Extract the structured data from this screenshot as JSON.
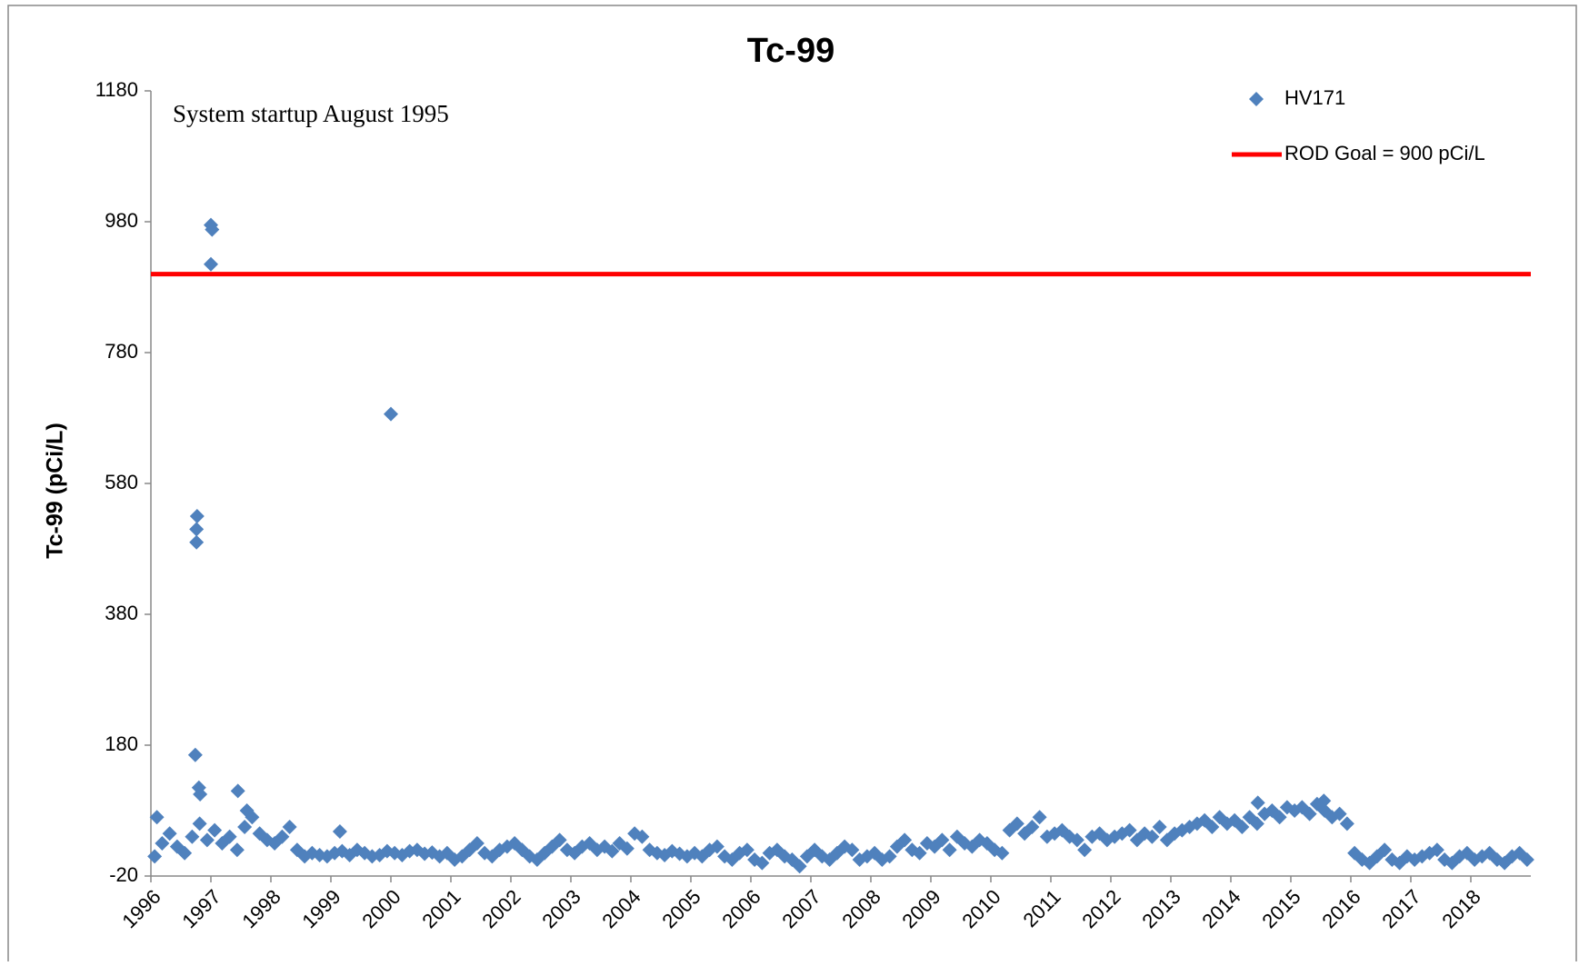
{
  "chart_data": {
    "type": "scatter",
    "title": "Tc-99",
    "ylabel": "Tc-99 (pCi/L)",
    "annotation": "System startup August 1995",
    "xlim": [
      1996,
      2019
    ],
    "xticks": [
      1996,
      1997,
      1998,
      1999,
      2000,
      2001,
      2002,
      2003,
      2004,
      2005,
      2006,
      2007,
      2008,
      2009,
      2010,
      2011,
      2012,
      2013,
      2014,
      2015,
      2016,
      2017,
      2018
    ],
    "ylim": [
      -20,
      1180
    ],
    "yticks": [
      -20,
      180,
      380,
      580,
      780,
      980,
      1180
    ],
    "reference_line": {
      "name": "ROD Goal = 900 pCi/L",
      "value": 900,
      "color": "#ff0000"
    },
    "series": [
      {
        "name": "HV171",
        "color": "#4f81bd",
        "x": [
          1996.0625,
          1996.1875,
          1996.3125,
          1996.4375,
          1996.5625,
          1996.6875,
          1996.8125,
          1996.9375,
          1997.0625,
          1997.1875,
          1997.3125,
          1997.4375,
          1997.5625,
          1997.6875,
          1997.8125,
          1997.9375,
          1998.0625,
          1998.1875,
          1998.3125,
          1998.4375,
          1998.5625,
          1998.6875,
          1998.8125,
          1998.9375,
          1999.0625,
          1999.1875,
          1999.3125,
          1999.4375,
          1999.5625,
          1999.6875,
          1999.8125,
          1999.9375,
          2000.0625,
          2000.1875,
          2000.3125,
          2000.4375,
          2000.5625,
          2000.6875,
          2000.8125,
          2000.9375,
          2001.0625,
          2001.1875,
          2001.3125,
          2001.4375,
          2001.5625,
          2001.6875,
          2001.8125,
          2001.9375,
          2002.0625,
          2002.1875,
          2002.3125,
          2002.4375,
          2002.5625,
          2002.6875,
          2002.8125,
          2002.9375,
          2003.0625,
          2003.1875,
          2003.3125,
          2003.4375,
          2003.5625,
          2003.6875,
          2003.8125,
          2003.9375,
          2004.0625,
          2004.1875,
          2004.3125,
          2004.4375,
          2004.5625,
          2004.6875,
          2004.8125,
          2004.9375,
          2005.0625,
          2005.1875,
          2005.3125,
          2005.4375,
          2005.5625,
          2005.6875,
          2005.8125,
          2005.9375,
          2006.0625,
          2006.1875,
          2006.3125,
          2006.4375,
          2006.5625,
          2006.6875,
          2006.8125,
          2006.9375,
          2007.0625,
          2007.1875,
          2007.3125,
          2007.4375,
          2007.5625,
          2007.6875,
          2007.8125,
          2007.9375,
          2008.0625,
          2008.1875,
          2008.3125,
          2008.4375,
          2008.5625,
          2008.6875,
          2008.8125,
          2008.9375,
          2009.0625,
          2009.1875,
          2009.3125,
          2009.4375,
          2009.5625,
          2009.6875,
          2009.8125,
          2009.9375,
          2010.0625,
          2010.1875,
          2010.3125,
          2010.4375,
          2010.5625,
          2010.6875,
          2010.8125,
          2010.9375,
          2011.0625,
          2011.1875,
          2011.3125,
          2011.4375,
          2011.5625,
          2011.6875,
          2011.8125,
          2011.9375,
          2012.0625,
          2012.1875,
          2012.3125,
          2012.4375,
          2012.5625,
          2012.6875,
          2012.8125,
          2012.9375,
          2013.0625,
          2013.1875,
          2013.3125,
          2013.4375,
          2013.5625,
          2013.6875,
          2013.8125,
          2013.9375,
          2014.0625,
          2014.1875,
          2014.3125,
          2014.4375,
          2014.5625,
          2014.6875,
          2014.8125,
          2014.9375,
          2015.0625,
          2015.1875,
          2015.3125,
          2015.4375,
          2015.5625,
          2015.6875,
          2015.8125,
          2015.9375,
          2016.0625,
          2016.1875,
          2016.3125,
          2016.4375,
          2016.5625,
          2016.6875,
          2016.8125,
          2016.9375,
          2017.0625,
          2017.1875,
          2017.3125,
          2017.4375,
          2017.5625,
          2017.6875,
          2017.8125,
          2017.9375,
          2018.0625,
          2018.1875,
          2018.3125,
          2018.4375,
          2018.5625,
          2018.6875,
          2018.8125,
          2018.9375,
          1996.74,
          1996.76,
          1996.76,
          1996.77,
          1996.8,
          1996.82,
          1997.0,
          1997.02,
          1997.0,
          1997.45,
          1999.15,
          2000.0,
          2014.45,
          2015.55,
          1996.1,
          1997.6
        ],
        "values": [
          10,
          30,
          45,
          25,
          15,
          40,
          60,
          35,
          50,
          30,
          40,
          20,
          55,
          70,
          45,
          35,
          30,
          40,
          55,
          20,
          10,
          15,
          12,
          10,
          15,
          18,
          12,
          20,
          15,
          10,
          12,
          18,
          15,
          12,
          18,
          20,
          14,
          16,
          10,
          15,
          5,
          10,
          20,
          30,
          15,
          10,
          20,
          25,
          30,
          20,
          10,
          5,
          15,
          25,
          35,
          20,
          15,
          25,
          30,
          20,
          25,
          18,
          30,
          22,
          45,
          40,
          20,
          15,
          12,
          18,
          14,
          10,
          15,
          10,
          20,
          25,
          10,
          5,
          15,
          20,
          5,
          0,
          15,
          20,
          10,
          5,
          -5,
          10,
          20,
          10,
          5,
          15,
          25,
          20,
          5,
          10,
          15,
          5,
          10,
          25,
          35,
          20,
          15,
          30,
          25,
          35,
          20,
          40,
          30,
          25,
          35,
          30,
          20,
          15,
          50,
          60,
          45,
          55,
          70,
          40,
          45,
          50,
          40,
          35,
          20,
          40,
          45,
          35,
          40,
          45,
          50,
          35,
          45,
          40,
          55,
          35,
          45,
          50,
          55,
          60,
          65,
          55,
          70,
          60,
          65,
          55,
          70,
          60,
          75,
          80,
          70,
          85,
          80,
          85,
          75,
          90,
          80,
          70,
          75,
          60,
          15,
          5,
          0,
          10,
          20,
          5,
          0,
          10,
          5,
          10,
          15,
          20,
          5,
          0,
          10,
          15,
          5,
          10,
          15,
          5,
          0,
          10,
          15,
          5,
          165,
          490,
          510,
          530,
          115,
          105,
          975,
          968,
          915,
          110,
          48,
          686,
          92,
          95,
          70,
          80
        ]
      }
    ]
  }
}
